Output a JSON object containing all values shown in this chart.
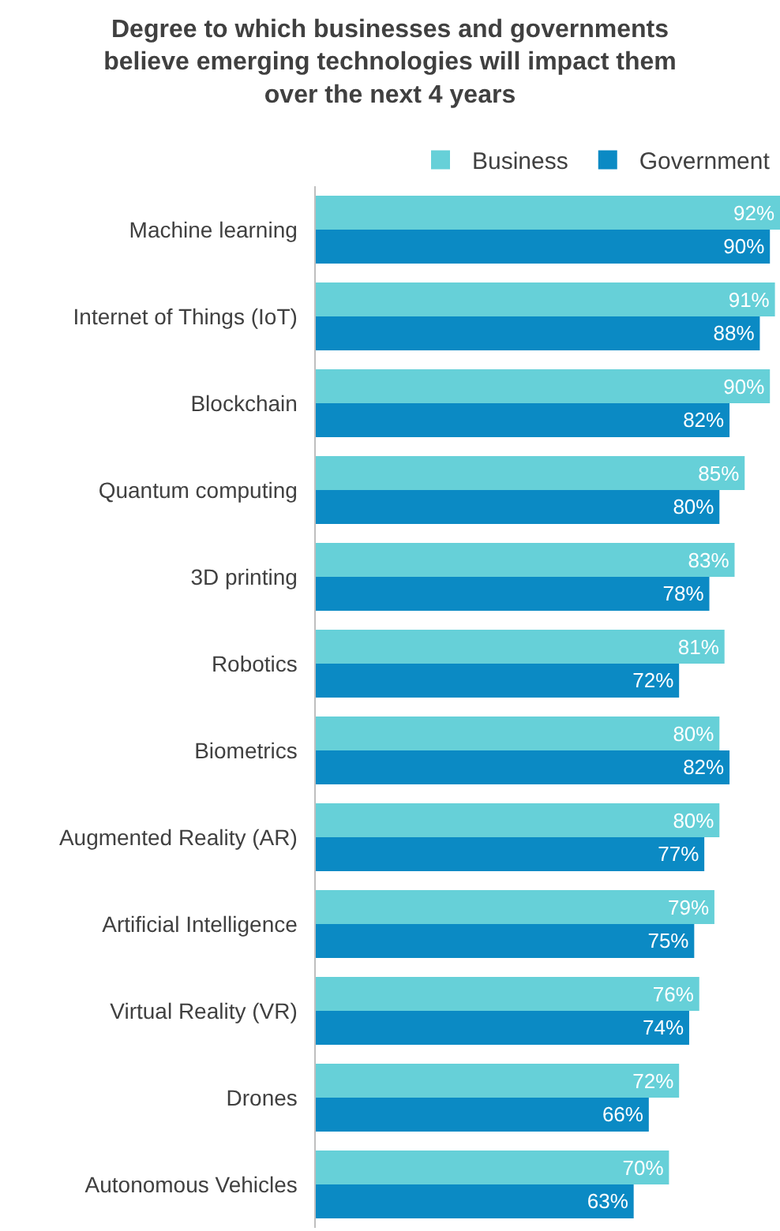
{
  "chart_data": {
    "type": "bar",
    "orientation": "horizontal",
    "title": "Degree to which businesses and governments believe emerging technologies will impact them over the next 4 years",
    "categories": [
      "Machine learning",
      "Internet of Things (IoT)",
      "Blockchain",
      "Quantum computing",
      "3D printing",
      "Robotics",
      "Biometrics",
      "Augmented Reality (AR)",
      "Artificial Intelligence",
      "Virtual Reality (VR)",
      "Drones",
      "Autonomous Vehicles"
    ],
    "series": [
      {
        "name": "Business",
        "color": "#66d0d8",
        "values": [
          92,
          91,
          90,
          85,
          83,
          81,
          80,
          80,
          79,
          76,
          72,
          70
        ],
        "value_labels": [
          "92%",
          "91%",
          "90%",
          "85%",
          "83%",
          "81%",
          "80%",
          "80%",
          "79%",
          "76%",
          "72%",
          "70%"
        ]
      },
      {
        "name": "Government",
        "color": "#0b8ac4",
        "values": [
          90,
          88,
          82,
          80,
          78,
          72,
          82,
          77,
          75,
          74,
          66,
          63
        ],
        "value_labels": [
          "90%",
          "88%",
          "82%",
          "80%",
          "78%",
          "72%",
          "82%",
          "77%",
          "75%",
          "74%",
          "66%",
          "63%"
        ]
      }
    ],
    "xlim": [
      0,
      92
    ],
    "tick_labels": "y",
    "legend": "top right"
  }
}
